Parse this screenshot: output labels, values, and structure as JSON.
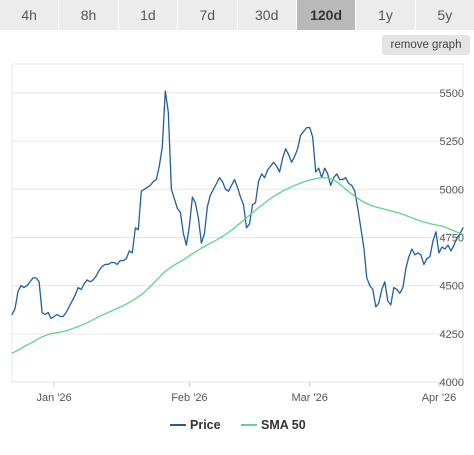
{
  "toolbar": {
    "tabs": [
      {
        "label": "4h",
        "active": false
      },
      {
        "label": "8h",
        "active": false
      },
      {
        "label": "1d",
        "active": false
      },
      {
        "label": "7d",
        "active": false
      },
      {
        "label": "30d",
        "active": false
      },
      {
        "label": "120d",
        "active": true
      },
      {
        "label": "1y",
        "active": false
      },
      {
        "label": "5y",
        "active": false
      }
    ],
    "remove_label": "remove graph"
  },
  "colors": {
    "price": "#1f5f9e",
    "sma": "#5fd38a",
    "grid": "#e6e6e6",
    "tab_bg": "#ececec",
    "tab_active_bg": "#b9b9b9"
  },
  "chart_data": {
    "type": "line",
    "ylim": [
      4000,
      5650
    ],
    "y_ticks": [
      4000,
      4250,
      4500,
      4750,
      5000,
      5250,
      5500
    ],
    "y_tick_labels": [
      "4000",
      "4250",
      "4500",
      "4750",
      "5000",
      "5250",
      "5500"
    ],
    "x_ticks": [
      {
        "label": "Jan '26",
        "index": 14
      },
      {
        "label": "Feb '26",
        "index": 59
      },
      {
        "label": "Mar '26",
        "index": 99
      },
      {
        "label": "Apr '26",
        "index": 142
      }
    ],
    "grid": true,
    "legend": "bottom-center",
    "series": [
      {
        "name": "Price",
        "values": [
          4350,
          4380,
          4470,
          4500,
          4490,
          4500,
          4520,
          4540,
          4540,
          4520,
          4360,
          4350,
          4360,
          4330,
          4340,
          4350,
          4340,
          4340,
          4360,
          4390,
          4420,
          4450,
          4490,
          4480,
          4510,
          4530,
          4520,
          4530,
          4550,
          4580,
          4600,
          4610,
          4610,
          4620,
          4620,
          4610,
          4630,
          4630,
          4640,
          4680,
          4670,
          4800,
          4790,
          4990,
          5000,
          5010,
          5020,
          5040,
          5050,
          5120,
          5220,
          5510,
          5400,
          5000,
          4950,
          4900,
          4880,
          4770,
          4710,
          4810,
          4960,
          4930,
          4850,
          4720,
          4770,
          4910,
          4970,
          5000,
          5030,
          5060,
          5040,
          5000,
          4990,
          5020,
          5050,
          5010,
          4960,
          4920,
          4800,
          4820,
          4920,
          4930,
          5040,
          5080,
          5060,
          5100,
          5120,
          5140,
          5120,
          5090,
          5160,
          5210,
          5180,
          5140,
          5170,
          5210,
          5280,
          5300,
          5320,
          5320,
          5270,
          5090,
          5110,
          5060,
          5110,
          5080,
          5020,
          5060,
          5080,
          5050,
          5050,
          5060,
          5030,
          5020,
          4990,
          4900,
          4800,
          4700,
          4540,
          4500,
          4480,
          4390,
          4410,
          4480,
          4520,
          4420,
          4400,
          4490,
          4480,
          4460,
          4490,
          4590,
          4650,
          4690,
          4660,
          4670,
          4660,
          4610,
          4640,
          4650,
          4730,
          4780,
          4670,
          4700,
          4690,
          4710,
          4680,
          4710,
          4750,
          4770,
          4800
        ]
      },
      {
        "name": "SMA 50",
        "values": [
          4150,
          4157,
          4165,
          4174,
          4183,
          4192,
          4200,
          4208,
          4217,
          4226,
          4234,
          4240,
          4246,
          4250,
          4253,
          4256,
          4259,
          4262,
          4266,
          4271,
          4276,
          4282,
          4288,
          4294,
          4300,
          4307,
          4315,
          4323,
          4331,
          4339,
          4347,
          4354,
          4361,
          4368,
          4375,
          4382,
          4389,
          4396,
          4404,
          4413,
          4422,
          4432,
          4442,
          4453,
          4466,
          4480,
          4495,
          4511,
          4527,
          4543,
          4560,
          4574,
          4586,
          4597,
          4607,
          4616,
          4625,
          4634,
          4644,
          4655,
          4665,
          4675,
          4685,
          4694,
          4703,
          4712,
          4720,
          4728,
          4737,
          4746,
          4755,
          4765,
          4776,
          4788,
          4800,
          4813,
          4826,
          4839,
          4852,
          4865,
          4878,
          4891,
          4904,
          4917,
          4929,
          4941,
          4952,
          4962,
          4972,
          4981,
          4990,
          4998,
          5006,
          5013,
          5020,
          5026,
          5032,
          5038,
          5043,
          5048,
          5052,
          5055,
          5058,
          5060,
          5060,
          5059,
          5055,
          5048,
          5038,
          5027,
          5014,
          5001,
          4988,
          4976,
          4964,
          4953,
          4943,
          4934,
          4926,
          4919,
          4913,
          4908,
          4904,
          4900,
          4896,
          4892,
          4888,
          4884,
          4880,
          4875,
          4870,
          4864,
          4858,
          4852,
          4846,
          4840,
          4835,
          4830,
          4826,
          4822,
          4818,
          4815,
          4812,
          4808,
          4803,
          4797,
          4791,
          4784,
          4778,
          4772,
          4766
        ]
      }
    ]
  }
}
